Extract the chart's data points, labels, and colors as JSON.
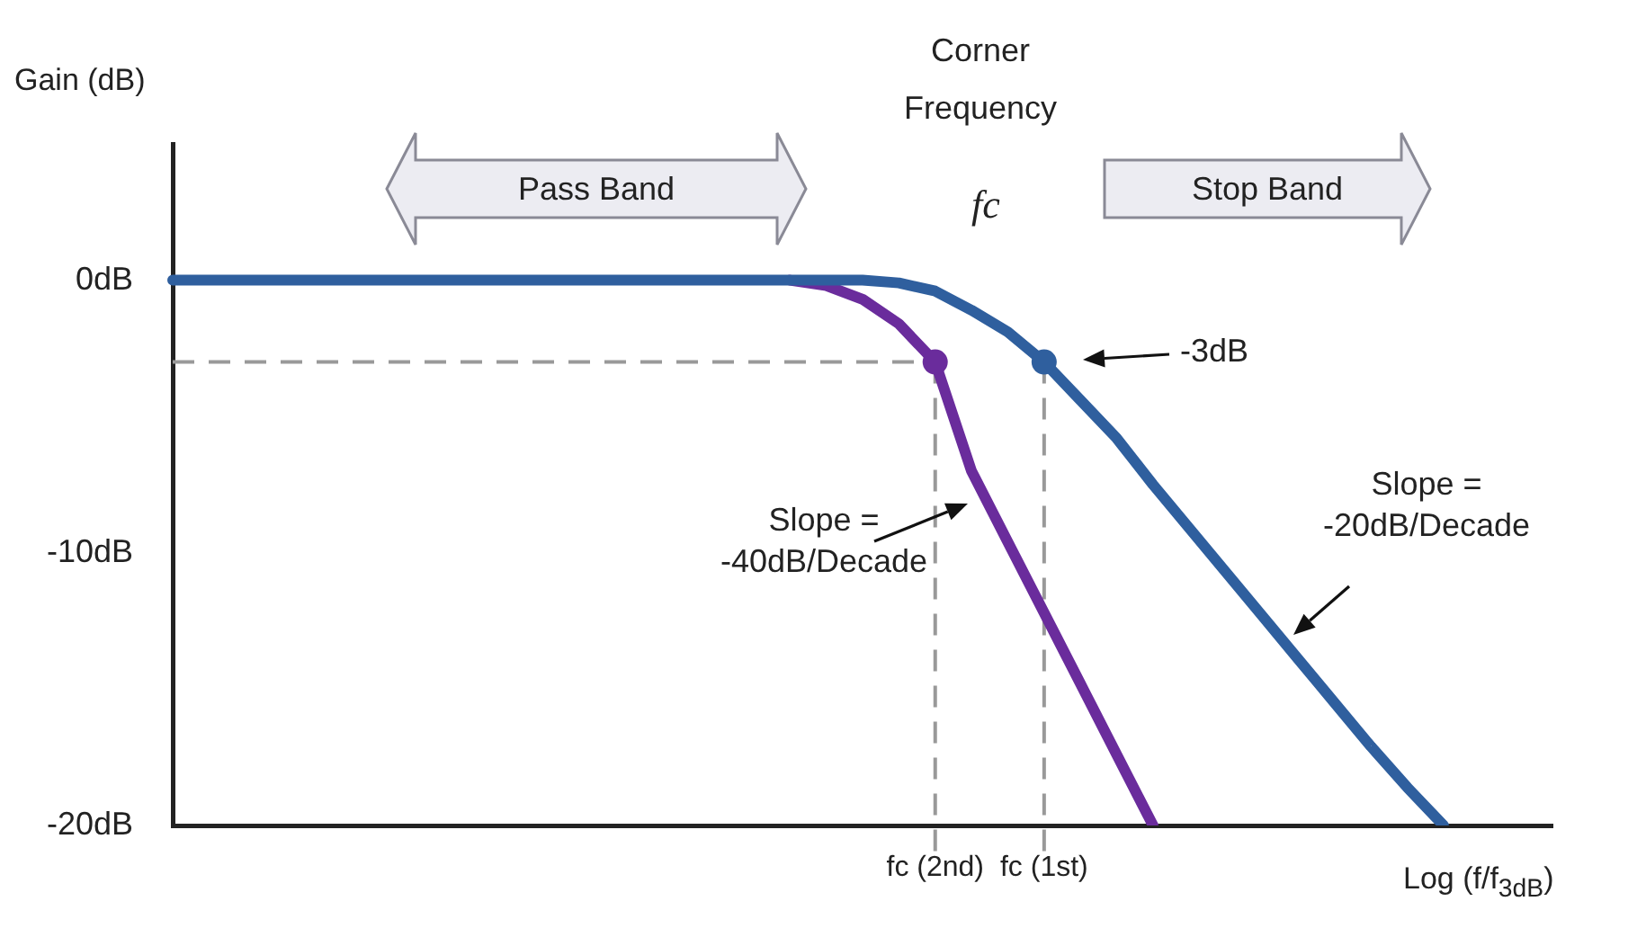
{
  "chart_data": {
    "type": "line",
    "ylabel": "Gain (dB)",
    "xlabel": "Log (f/f$_{3dB}$)",
    "categories": [
      null,
      null,
      null,
      null,
      null,
      null,
      null,
      null,
      null,
      null,
      null,
      null,
      null,
      null,
      null,
      null,
      null,
      null,
      null,
      null,
      null,
      "fc (2nd)",
      null,
      null,
      "fc (1st)",
      null,
      null,
      null,
      null,
      null,
      null,
      null,
      null,
      null,
      null,
      null,
      null,
      null,
      null
    ],
    "ylim": [
      -20,
      5
    ],
    "yticks": [
      {
        "value": 0,
        "label": "0dB"
      },
      {
        "value": -10,
        "label": "-10dB"
      },
      {
        "value": -20,
        "label": "-20dB"
      }
    ],
    "grid": false,
    "legend": false,
    "marker": "none",
    "line_style": "solid",
    "series": [
      {
        "color": "#2f5f9e",
        "values": [
          0,
          0,
          0,
          0,
          0,
          0,
          0,
          0,
          0,
          0,
          0,
          0,
          0,
          0,
          0,
          0,
          0,
          0,
          0,
          0,
          -0.1,
          -0.4,
          -1.1,
          -1.9,
          -3,
          -4.4,
          -5.8,
          -7.5,
          -9.1,
          -10.7,
          -12.3,
          -13.9,
          -15.5,
          -17.1,
          -18.6,
          -20,
          null,
          null,
          null
        ]
      },
      {
        "color": "#6a2c9c",
        "values": [
          null,
          null,
          null,
          null,
          null,
          null,
          null,
          null,
          null,
          null,
          null,
          null,
          null,
          null,
          null,
          null,
          null,
          0,
          -0.2,
          -0.7,
          -1.6,
          -3,
          -7,
          -9.6,
          -12.2,
          -14.8,
          -17.4,
          -20,
          null,
          null,
          null,
          null,
          null,
          null,
          null,
          null,
          null,
          null,
          null
        ]
      },
      {
        "type": "scatter",
        "marker": "circle",
        "x": [
          "fc (2nd)",
          "fc (1st)"
        ],
        "values": [
          -3,
          -3
        ],
        "colors": [
          "#6a2c9c",
          "#2f5f9e"
        ]
      }
    ],
    "ref_lines": [
      {
        "axis": "y",
        "value": -3,
        "color": "#999999",
        "line_style": "dashed"
      },
      {
        "axis": "x",
        "value": "fc (2nd)",
        "color": "#999999",
        "line_style": "dashed"
      },
      {
        "axis": "x",
        "value": "fc (1st)",
        "color": "#999999",
        "line_style": "dashed"
      }
    ],
    "annotations": [
      "Corner Frequency",
      "fc",
      "Pass Band",
      "Stop Band",
      "-3dB",
      "Slope =\n-40dB/Decade",
      "Slope =\n-20dB/Decade"
    ]
  }
}
